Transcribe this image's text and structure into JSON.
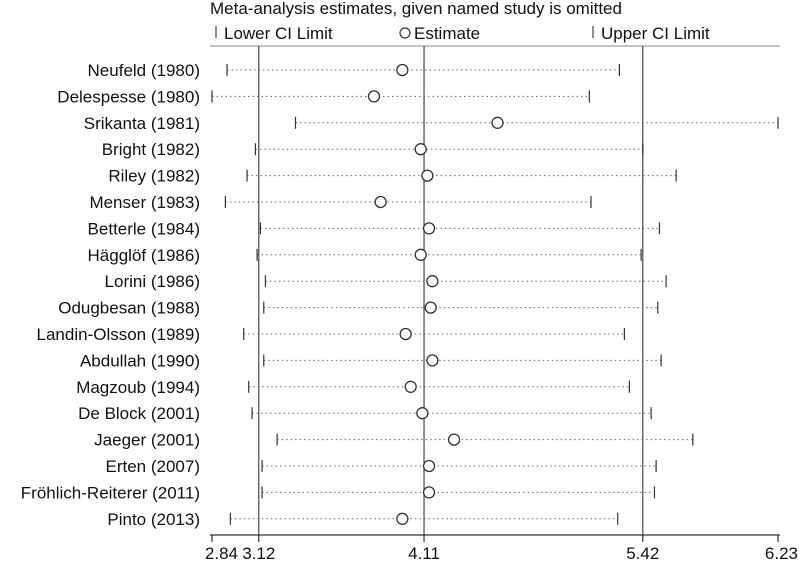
{
  "chart_data": {
    "type": "scatter",
    "title": "Meta-analysis estimates, given named study is omitted",
    "legend": {
      "placement": "top",
      "entries": [
        {
          "symbol": "tick",
          "label": "Lower CI Limit"
        },
        {
          "symbol": "circle",
          "label": "Estimate"
        },
        {
          "symbol": "tick",
          "label": "Upper CI Limit"
        }
      ]
    },
    "xlim": [
      2.84,
      6.23
    ],
    "xticks": [
      "2.84",
      "3.12",
      "4.11",
      "5.42",
      "6.23"
    ],
    "reference_lines": [
      3.12,
      4.11,
      5.42
    ],
    "studies": [
      {
        "name": "Neufeld (1980)",
        "lower": 2.93,
        "estimate": 3.98,
        "upper": 5.28
      },
      {
        "name": "Delespesse (1980)",
        "lower": 2.84,
        "estimate": 3.81,
        "upper": 5.1
      },
      {
        "name": "Srikanta (1981)",
        "lower": 3.34,
        "estimate": 4.55,
        "upper": 6.23
      },
      {
        "name": "Bright (1982)",
        "lower": 3.1,
        "estimate": 4.09,
        "upper": 5.42
      },
      {
        "name": "Riley (1982)",
        "lower": 3.05,
        "estimate": 4.13,
        "upper": 5.62
      },
      {
        "name": "Menser (1983)",
        "lower": 2.92,
        "estimate": 3.85,
        "upper": 5.11
      },
      {
        "name": "Betterle (1984)",
        "lower": 3.13,
        "estimate": 4.14,
        "upper": 5.52
      },
      {
        "name": "Hägglöf (1986)",
        "lower": 3.11,
        "estimate": 4.09,
        "upper": 5.41
      },
      {
        "name": "Lorini (1986)",
        "lower": 3.16,
        "estimate": 4.16,
        "upper": 5.56
      },
      {
        "name": "Odugbesan (1988)",
        "lower": 3.15,
        "estimate": 4.15,
        "upper": 5.51
      },
      {
        "name": "Landin-Olsson (1989)",
        "lower": 3.03,
        "estimate": 4.0,
        "upper": 5.31
      },
      {
        "name": "Abdullah (1990)",
        "lower": 3.15,
        "estimate": 4.16,
        "upper": 5.53
      },
      {
        "name": "Magzoub (1994)",
        "lower": 3.06,
        "estimate": 4.03,
        "upper": 5.34
      },
      {
        "name": "De Block (2001)",
        "lower": 3.08,
        "estimate": 4.1,
        "upper": 5.47
      },
      {
        "name": "Jaeger (2001)",
        "lower": 3.23,
        "estimate": 4.29,
        "upper": 5.72
      },
      {
        "name": "Erten (2007)",
        "lower": 3.14,
        "estimate": 4.14,
        "upper": 5.5
      },
      {
        "name": "Fröhlich-Reiterer (2011)",
        "lower": 3.14,
        "estimate": 4.14,
        "upper": 5.49
      },
      {
        "name": "Pinto (2013)",
        "lower": 2.95,
        "estimate": 3.98,
        "upper": 5.27
      }
    ]
  },
  "colors": {
    "reference_line": "#555555",
    "interval": "#666666",
    "marker": "#333333",
    "text": "#111111"
  }
}
